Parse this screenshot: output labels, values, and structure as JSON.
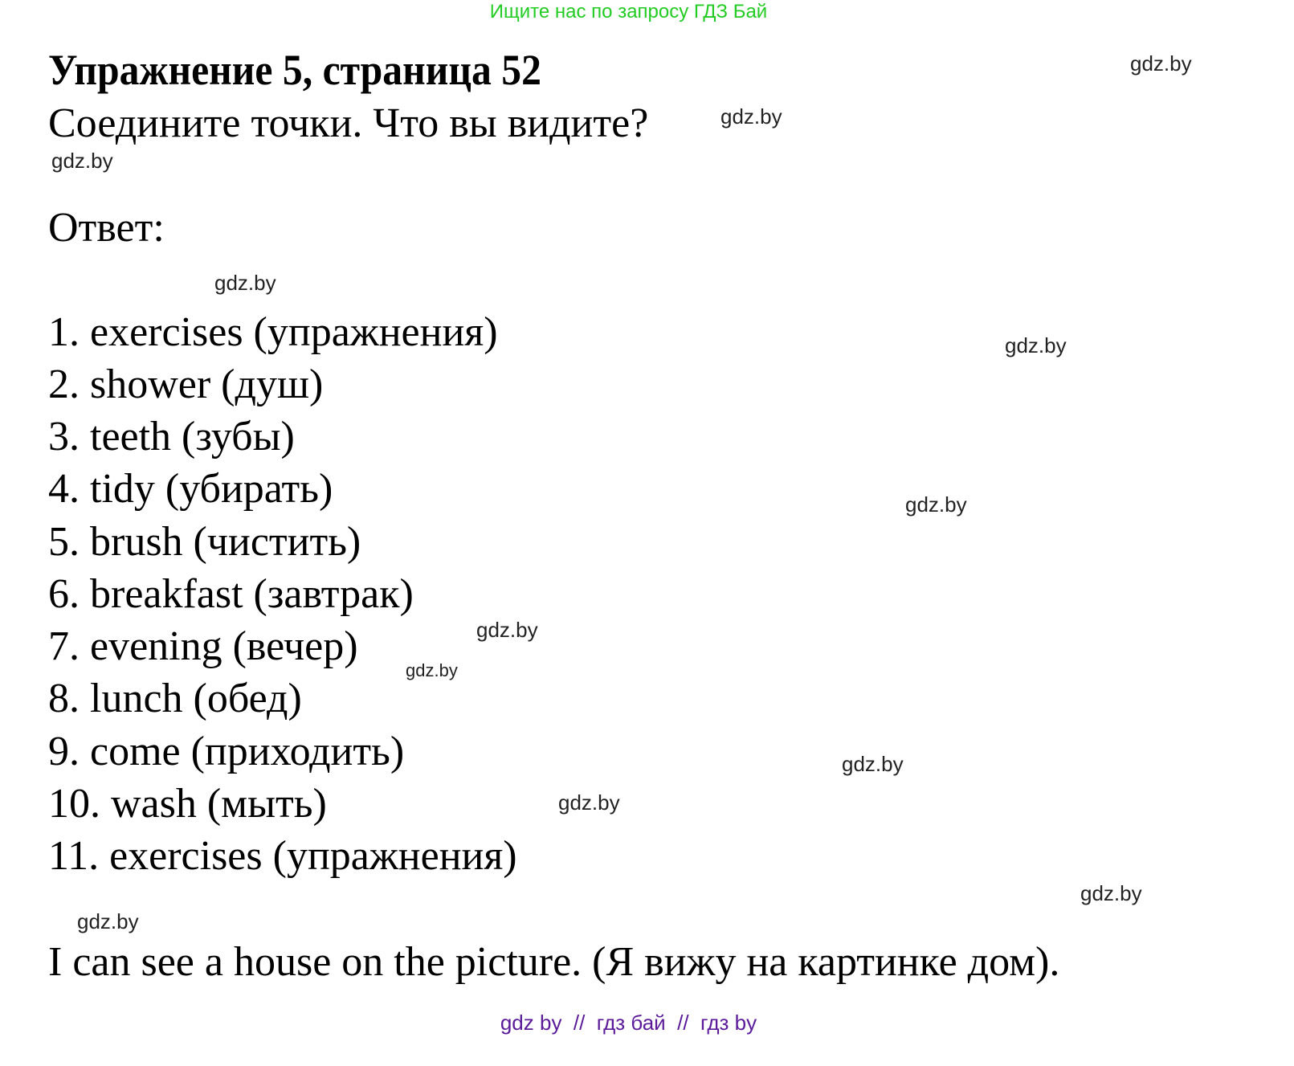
{
  "top_link": "Ищите нас по запросу ГДЗ Бай",
  "title": "Упражнение 5, страница 52",
  "task": "Соедините точки. Что вы видите?",
  "answer_label": "Ответ:",
  "items": [
    "1. exercises (упражнения)",
    "2. shower (душ)",
    "3. teeth (зубы)",
    "4. tidy (убирать)",
    "5. brush (чистить)",
    "6. breakfast (завтрак)",
    "7. evening (вечер)",
    "8. lunch (обед)",
    "9. come (приходить)",
    "10. wash (мыть)",
    "11. exercises (упражнения)"
  ],
  "conclusion": "I can see a house on the picture. (Я вижу на картинке дом).",
  "watermark": "gdz.by",
  "footer": "gdz by  //  гдз бай  //  гдз by",
  "colors": {
    "top_link": "#22cc22",
    "footer": "#5a1a9a"
  }
}
